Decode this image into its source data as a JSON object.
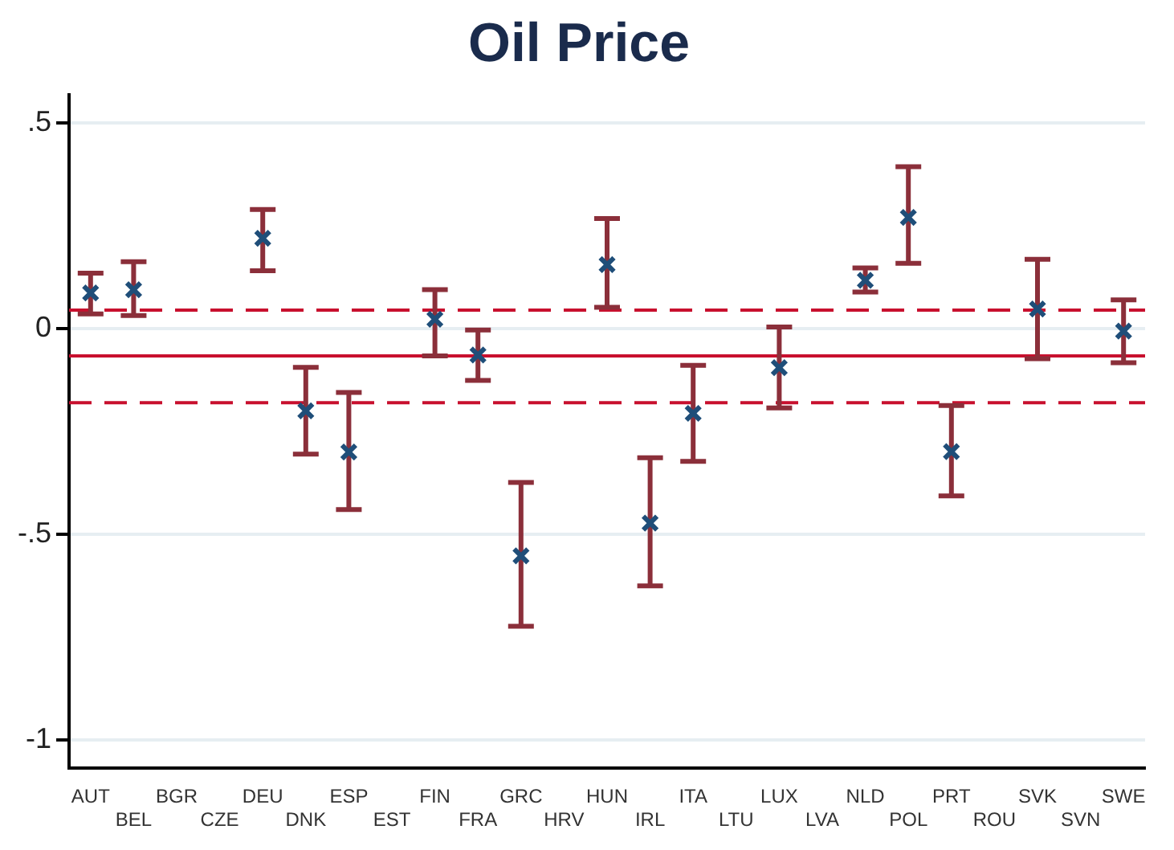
{
  "chart_data": {
    "type": "scatter",
    "title": "Oil Price",
    "categories": [
      "AUT",
      "BEL",
      "BGR",
      "CZE",
      "DEU",
      "DNK",
      "ESP",
      "EST",
      "FIN",
      "FRA",
      "GRC",
      "HRV",
      "HUN",
      "IRL",
      "ITA",
      "LTU",
      "LUX",
      "LVA",
      "NLD",
      "POL",
      "PRT",
      "ROU",
      "SVK",
      "SVN",
      "SWE"
    ],
    "series": [
      {
        "color": "#1f4e79",
        "values": [
          0.087,
          0.095,
          null,
          null,
          0.22,
          -0.2,
          -0.3,
          null,
          0.023,
          -0.064,
          -0.553,
          null,
          0.156,
          -0.473,
          -0.206,
          null,
          -0.095,
          null,
          0.118,
          0.271,
          -0.299,
          null,
          0.048,
          null,
          -0.006
        ],
        "errors": [
          [
            0.036,
            0.135
          ],
          [
            0.032,
            0.163
          ],
          null,
          null,
          [
            0.141,
            0.29
          ],
          [
            -0.305,
            -0.094
          ],
          [
            -0.44,
            -0.155
          ],
          null,
          [
            -0.066,
            0.095
          ],
          [
            -0.126,
            -0.003
          ],
          [
            -0.724,
            -0.374
          ],
          null,
          [
            0.052,
            0.268
          ],
          [
            -0.626,
            -0.314
          ],
          [
            -0.323,
            -0.089
          ],
          null,
          [
            -0.193,
            0.004
          ],
          null,
          [
            0.089,
            0.148
          ],
          [
            0.159,
            0.394
          ],
          [
            -0.407,
            -0.187
          ],
          null,
          [
            -0.073,
            0.169
          ],
          null,
          [
            -0.083,
            0.07
          ]
        ]
      }
    ],
    "ylim": [
      -1.07,
      0.57
    ],
    "yticks": [
      {
        "value": -1,
        "label": "-1"
      },
      {
        "value": -0.5,
        "label": "-.5"
      },
      {
        "value": 0,
        "label": "0"
      },
      {
        "value": 0.5,
        "label": ".5"
      }
    ],
    "ref_lines": [
      {
        "axis": "y",
        "value": 0.045,
        "color": "#c8102e",
        "line_style": "dashed"
      },
      {
        "axis": "y",
        "value": -0.066,
        "color": "#c8102e",
        "line_style": "solid"
      },
      {
        "axis": "y",
        "value": -0.18,
        "color": "#c8102e",
        "line_style": "dashed"
      }
    ],
    "grid": "y",
    "legend": false,
    "marker": "cross"
  }
}
